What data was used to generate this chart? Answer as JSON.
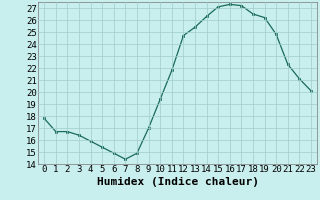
{
  "x": [
    0,
    1,
    2,
    3,
    4,
    5,
    6,
    7,
    8,
    9,
    10,
    11,
    12,
    13,
    14,
    15,
    16,
    17,
    18,
    19,
    20,
    21,
    22,
    23
  ],
  "y": [
    17.8,
    16.7,
    16.7,
    16.4,
    15.9,
    15.4,
    14.9,
    14.4,
    14.9,
    17.0,
    19.4,
    21.8,
    24.7,
    25.4,
    26.3,
    27.1,
    27.3,
    27.2,
    26.5,
    26.2,
    24.8,
    22.3,
    21.1,
    20.1
  ],
  "line_color": "#1a6b5a",
  "marker": "s",
  "marker_size": 2,
  "bg_color": "#c8eeed",
  "grid_color": "#a0cccc",
  "xlabel": "Humidex (Indice chaleur)",
  "ylim": [
    14,
    27.5
  ],
  "yticks": [
    14,
    15,
    16,
    17,
    18,
    19,
    20,
    21,
    22,
    23,
    24,
    25,
    26,
    27
  ],
  "xtick_labels": [
    "0",
    "1",
    "2",
    "3",
    "4",
    "5",
    "6",
    "7",
    "8",
    "9",
    "10",
    "11",
    "12",
    "13",
    "14",
    "15",
    "16",
    "17",
    "18",
    "19",
    "20",
    "21",
    "22",
    "23"
  ],
  "label_fontsize": 8,
  "tick_fontsize": 6.5
}
